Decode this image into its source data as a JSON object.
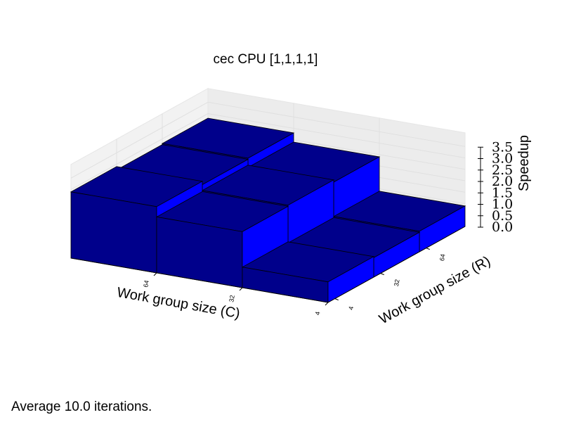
{
  "chart_data": {
    "type": "bar3d",
    "title": "cec CPU [1,1,1,1]",
    "xlabel": "Work group size (C)",
    "ylabel": "Work group size (R)",
    "zlabel": "Speedup",
    "x_categories": [
      "64",
      "32",
      "4"
    ],
    "y_categories": [
      "4",
      "32",
      "64"
    ],
    "zlim": [
      0,
      3.5
    ],
    "zticks": [
      "0.0",
      "0.5",
      "1.0",
      "1.5",
      "2.0",
      "2.5",
      "3.0",
      "3.5"
    ],
    "grid": true,
    "bars": [
      {
        "x": "64",
        "y": "4",
        "z": 2.9
      },
      {
        "x": "64",
        "y": "32",
        "z": 2.75
      },
      {
        "x": "64",
        "y": "64",
        "z": 2.8
      },
      {
        "x": "32",
        "y": "4",
        "z": 2.45
      },
      {
        "x": "32",
        "y": "32",
        "z": 2.5
      },
      {
        "x": "32",
        "y": "64",
        "z": 2.4
      },
      {
        "x": "4",
        "y": "4",
        "z": 0.9
      },
      {
        "x": "4",
        "y": "32",
        "z": 0.85
      },
      {
        "x": "4",
        "y": "64",
        "z": 0.9
      }
    ],
    "colors": {
      "top": "#00008b",
      "front": "#00008b",
      "side": "#0000ff",
      "edge": "#000000"
    }
  },
  "footer": "Average 10.0 iterations."
}
